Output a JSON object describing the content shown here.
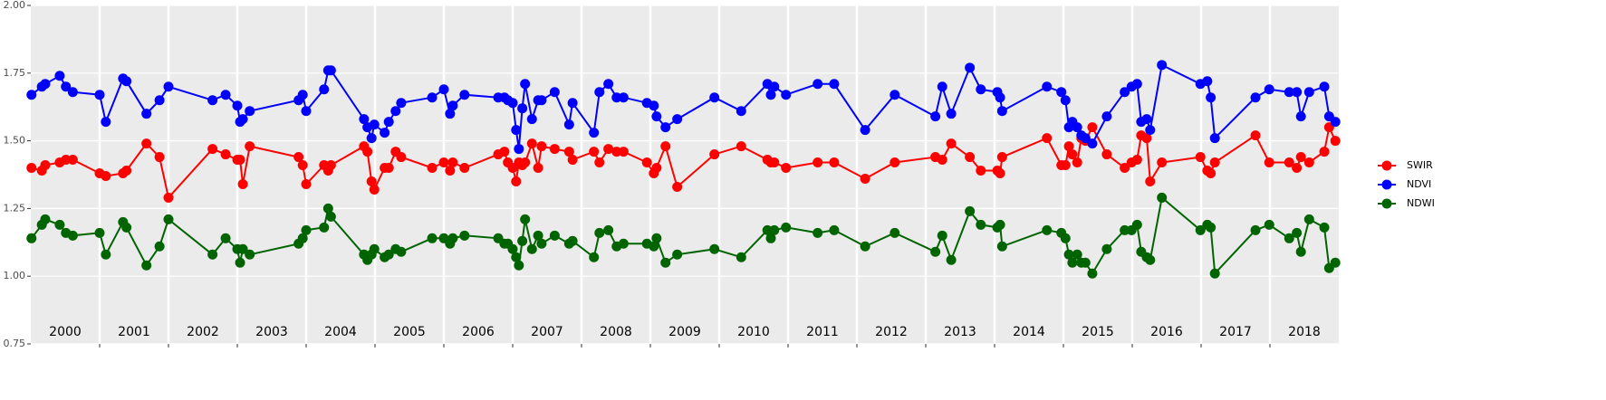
{
  "chart_data": {
    "type": "line",
    "xlim": [
      2000,
      2019
    ],
    "ylim": [
      0.75,
      2.0
    ],
    "yticks": [
      {
        "value": 0.75,
        "label": "0.75"
      },
      {
        "value": 1.0,
        "label": "1.00"
      },
      {
        "value": 1.25,
        "label": "1.25"
      },
      {
        "value": 1.5,
        "label": "1.50"
      },
      {
        "value": 1.75,
        "label": "1.75"
      },
      {
        "value": 2.0,
        "label": "2.00"
      }
    ],
    "xticks": [
      {
        "value": 2000.5,
        "label": "2000"
      },
      {
        "value": 2001.5,
        "label": "2001"
      },
      {
        "value": 2002.5,
        "label": "2002"
      },
      {
        "value": 2003.5,
        "label": "2003"
      },
      {
        "value": 2004.5,
        "label": "2004"
      },
      {
        "value": 2005.5,
        "label": "2005"
      },
      {
        "value": 2006.5,
        "label": "2006"
      },
      {
        "value": 2007.5,
        "label": "2007"
      },
      {
        "value": 2008.5,
        "label": "2008"
      },
      {
        "value": 2009.5,
        "label": "2009"
      },
      {
        "value": 2010.5,
        "label": "2010"
      },
      {
        "value": 2011.5,
        "label": "2011"
      },
      {
        "value": 2012.5,
        "label": "2012"
      },
      {
        "value": 2013.5,
        "label": "2013"
      },
      {
        "value": 2014.5,
        "label": "2014"
      },
      {
        "value": 2015.5,
        "label": "2015"
      },
      {
        "value": 2016.5,
        "label": "2016"
      },
      {
        "value": 2017.5,
        "label": "2017"
      },
      {
        "value": 2018.5,
        "label": "2018"
      }
    ],
    "year_lines": [
      2001,
      2002,
      2003,
      2004,
      2005,
      2006,
      2007,
      2008,
      2009,
      2010,
      2011,
      2012,
      2013,
      2014,
      2015,
      2016,
      2017,
      2018
    ],
    "grid": true,
    "legend": "right",
    "x": [
      2000.01,
      2000.16,
      2000.21,
      2000.42,
      2000.51,
      2000.61,
      2001.0,
      2001.09,
      2001.34,
      2001.39,
      2001.68,
      2001.87,
      2002.0,
      2002.64,
      2002.83,
      2003.0,
      2003.04,
      2003.08,
      2003.18,
      2003.89,
      2003.95,
      2004.0,
      2004.26,
      2004.32,
      2004.36,
      2004.84,
      2004.89,
      2004.95,
      2004.99,
      2005.14,
      2005.2,
      2005.3,
      2005.38,
      2005.83,
      2006.0,
      2006.09,
      2006.13,
      2006.3,
      2006.79,
      2006.88,
      2006.93,
      2007.0,
      2007.05,
      2007.09,
      2007.14,
      2007.18,
      2007.28,
      2007.37,
      2007.42,
      2007.61,
      2007.82,
      2007.87,
      2008.18,
      2008.26,
      2008.39,
      2008.51,
      2008.61,
      2008.95,
      2009.05,
      2009.09,
      2009.22,
      2009.39,
      2009.93,
      2010.32,
      2010.7,
      2010.75,
      2010.8,
      2010.97,
      2011.43,
      2011.67,
      2012.12,
      2012.55,
      2013.14,
      2013.24,
      2013.37,
      2013.64,
      2013.8,
      2014.04,
      2014.08,
      2014.11,
      2014.76,
      2014.97,
      2015.03,
      2015.08,
      2015.13,
      2015.2,
      2015.26,
      2015.32,
      2015.42,
      2015.63,
      2015.89,
      2015.99,
      2016.07,
      2016.13,
      2016.21,
      2016.26,
      2016.43,
      2016.99,
      2017.09,
      2017.14,
      2017.2,
      2017.79,
      2017.99,
      2018.28,
      2018.39,
      2018.45,
      2018.57,
      2018.79,
      2018.86,
      2018.95
    ],
    "series": [
      {
        "name": "SWIR",
        "color": "#ff0000",
        "values": [
          1.4,
          1.39,
          1.41,
          1.42,
          1.43,
          1.43,
          1.38,
          1.37,
          1.38,
          1.39,
          1.49,
          1.44,
          1.29,
          1.47,
          1.45,
          1.43,
          1.43,
          1.34,
          1.48,
          1.44,
          1.41,
          1.34,
          1.41,
          1.39,
          1.41,
          1.48,
          1.46,
          1.35,
          1.32,
          1.4,
          1.4,
          1.46,
          1.44,
          1.4,
          1.42,
          1.39,
          1.42,
          1.4,
          1.45,
          1.46,
          1.42,
          1.4,
          1.35,
          1.42,
          1.41,
          1.42,
          1.49,
          1.4,
          1.48,
          1.47,
          1.46,
          1.43,
          1.46,
          1.42,
          1.47,
          1.46,
          1.46,
          1.42,
          1.38,
          1.4,
          1.48,
          1.33,
          1.45,
          1.48,
          1.43,
          1.42,
          1.42,
          1.4,
          1.42,
          1.42,
          1.36,
          1.42,
          1.44,
          1.43,
          1.49,
          1.44,
          1.39,
          1.39,
          1.38,
          1.44,
          1.51,
          1.41,
          1.41,
          1.48,
          1.45,
          1.42,
          1.51,
          1.5,
          1.55,
          1.45,
          1.4,
          1.42,
          1.43,
          1.52,
          1.51,
          1.35,
          1.42,
          1.44,
          1.39,
          1.38,
          1.42,
          1.52,
          1.42,
          1.42,
          1.4,
          1.44,
          1.42,
          1.46,
          1.55,
          1.5
        ]
      },
      {
        "name": "NDVI",
        "color": "#0000ff",
        "values": [
          1.67,
          1.7,
          1.71,
          1.74,
          1.7,
          1.68,
          1.67,
          1.57,
          1.73,
          1.72,
          1.6,
          1.65,
          1.7,
          1.65,
          1.67,
          1.63,
          1.57,
          1.58,
          1.61,
          1.65,
          1.67,
          1.61,
          1.69,
          1.76,
          1.76,
          1.58,
          1.55,
          1.51,
          1.56,
          1.53,
          1.57,
          1.61,
          1.64,
          1.66,
          1.69,
          1.6,
          1.63,
          1.67,
          1.66,
          1.66,
          1.65,
          1.64,
          1.54,
          1.47,
          1.62,
          1.71,
          1.58,
          1.65,
          1.65,
          1.68,
          1.56,
          1.64,
          1.53,
          1.68,
          1.71,
          1.66,
          1.66,
          1.64,
          1.63,
          1.59,
          1.55,
          1.58,
          1.66,
          1.61,
          1.71,
          1.67,
          1.7,
          1.67,
          1.71,
          1.71,
          1.54,
          1.67,
          1.59,
          1.7,
          1.6,
          1.77,
          1.69,
          1.68,
          1.66,
          1.61,
          1.7,
          1.68,
          1.65,
          1.55,
          1.57,
          1.55,
          1.52,
          1.51,
          1.49,
          1.59,
          1.68,
          1.7,
          1.71,
          1.57,
          1.58,
          1.54,
          1.78,
          1.71,
          1.72,
          1.66,
          1.51,
          1.66,
          1.69,
          1.68,
          1.68,
          1.59,
          1.68,
          1.7,
          1.59,
          1.57
        ]
      },
      {
        "name": "NDWI",
        "color": "#006400",
        "values": [
          1.14,
          1.19,
          1.21,
          1.19,
          1.16,
          1.15,
          1.16,
          1.08,
          1.2,
          1.18,
          1.04,
          1.11,
          1.21,
          1.08,
          1.14,
          1.1,
          1.05,
          1.1,
          1.08,
          1.12,
          1.14,
          1.17,
          1.18,
          1.25,
          1.22,
          1.08,
          1.06,
          1.08,
          1.1,
          1.07,
          1.08,
          1.1,
          1.09,
          1.14,
          1.14,
          1.12,
          1.14,
          1.15,
          1.14,
          1.12,
          1.12,
          1.1,
          1.07,
          1.04,
          1.13,
          1.21,
          1.1,
          1.15,
          1.12,
          1.15,
          1.12,
          1.13,
          1.07,
          1.16,
          1.17,
          1.11,
          1.12,
          1.12,
          1.11,
          1.14,
          1.05,
          1.08,
          1.1,
          1.07,
          1.17,
          1.14,
          1.17,
          1.18,
          1.16,
          1.17,
          1.11,
          1.16,
          1.09,
          1.15,
          1.06,
          1.24,
          1.19,
          1.18,
          1.19,
          1.11,
          1.17,
          1.16,
          1.14,
          1.08,
          1.05,
          1.08,
          1.05,
          1.05,
          1.01,
          1.1,
          1.17,
          1.17,
          1.19,
          1.09,
          1.07,
          1.06,
          1.29,
          1.17,
          1.19,
          1.18,
          1.01,
          1.17,
          1.19,
          1.14,
          1.16,
          1.09,
          1.21,
          1.18,
          1.03,
          1.05
        ]
      }
    ]
  }
}
